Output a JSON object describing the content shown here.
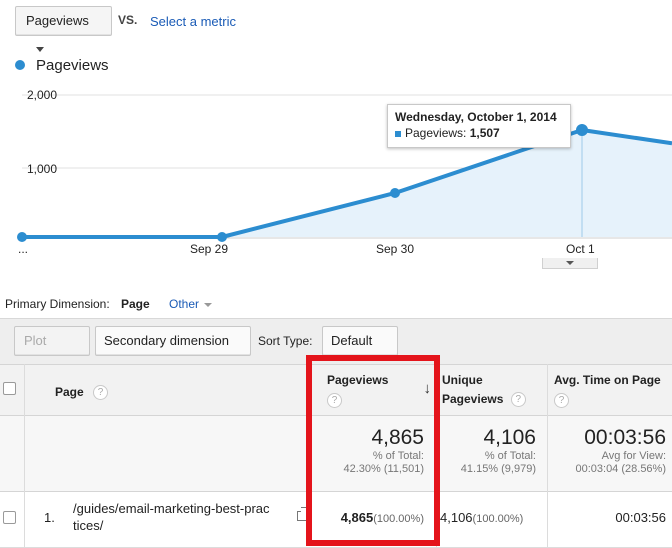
{
  "toolbar": {
    "metric_select": "Pageviews",
    "vs_label": "VS.",
    "select_metric_link": "Select a metric"
  },
  "legend": {
    "label": "Pageviews",
    "color": "#2c8dd0"
  },
  "chart_data": {
    "type": "area",
    "title": "",
    "series": [
      {
        "name": "Pageviews",
        "values": [
          0,
          0,
          620,
          1507,
          1320
        ]
      }
    ],
    "x_tick_labels": [
      "...",
      "Sep 29",
      "Sep 30",
      "Oct 1"
    ],
    "y_tick_labels": [
      "2,000",
      "1,000"
    ],
    "ylim": [
      0,
      2000
    ],
    "color": "#2c8dd0",
    "fill": "#e8f3fb"
  },
  "tooltip": {
    "date": "Wednesday, October 1, 2014",
    "label": "Pageviews: ",
    "value": "1,507"
  },
  "dimension": {
    "label": "Primary Dimension:",
    "active": "Page",
    "other": "Other"
  },
  "controls": {
    "plot_rows": "Plot Rows",
    "secondary_dimension": "Secondary dimension",
    "sort_type_label": "Sort Type:",
    "sort_type_value": "Default"
  },
  "table": {
    "headers": {
      "page": "Page",
      "pageviews": "Pageviews",
      "unique_line1": "Unique",
      "unique_line2": "Pageviews",
      "avg_time": "Avg. Time on Page"
    },
    "totals": {
      "pageviews_value": "4,865",
      "pageviews_sub1": "% of Total:",
      "pageviews_sub2": "42.30% (11,501)",
      "unique_value": "4,106",
      "unique_sub1": "% of Total:",
      "unique_sub2": "41.15% (9,979)",
      "avg_value": "00:03:56",
      "avg_sub1": "Avg for View:",
      "avg_sub2": "00:03:04 (28.56%)"
    },
    "rows": [
      {
        "index": "1.",
        "page_line1": "/guides/email-marketing-best-prac",
        "page_line2": "tices/",
        "pageviews": "4,865",
        "pageviews_pct": "(100.00%)",
        "unique": "4,106",
        "unique_pct": "(100.00%)",
        "avg_time": "00:03:56"
      }
    ]
  },
  "highlight_color": "#e4141b"
}
